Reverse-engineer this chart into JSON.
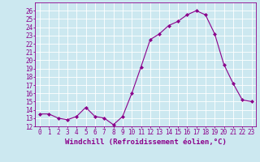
{
  "x": [
    0,
    1,
    2,
    3,
    4,
    5,
    6,
    7,
    8,
    9,
    10,
    11,
    12,
    13,
    14,
    15,
    16,
    17,
    18,
    19,
    20,
    21,
    22,
    23
  ],
  "y": [
    13.5,
    13.5,
    13.0,
    12.8,
    13.2,
    14.3,
    13.2,
    13.0,
    12.2,
    13.2,
    16.0,
    19.2,
    22.5,
    23.2,
    24.2,
    24.7,
    25.5,
    26.0,
    25.5,
    23.2,
    19.5,
    17.2,
    15.2,
    15.0
  ],
  "line_color": "#8b008b",
  "marker": "D",
  "marker_size": 2,
  "xlabel": "Windchill (Refroidissement éolien,°C)",
  "xlim": [
    -0.5,
    23.5
  ],
  "ylim": [
    12,
    27
  ],
  "yticks": [
    12,
    13,
    14,
    15,
    16,
    17,
    18,
    19,
    20,
    21,
    22,
    23,
    24,
    25,
    26
  ],
  "xticks": [
    0,
    1,
    2,
    3,
    4,
    5,
    6,
    7,
    8,
    9,
    10,
    11,
    12,
    13,
    14,
    15,
    16,
    17,
    18,
    19,
    20,
    21,
    22,
    23
  ],
  "background_color": "#cce8f0",
  "grid_color": "#ffffff",
  "axis_fontsize": 5.5,
  "label_fontsize": 6.5
}
